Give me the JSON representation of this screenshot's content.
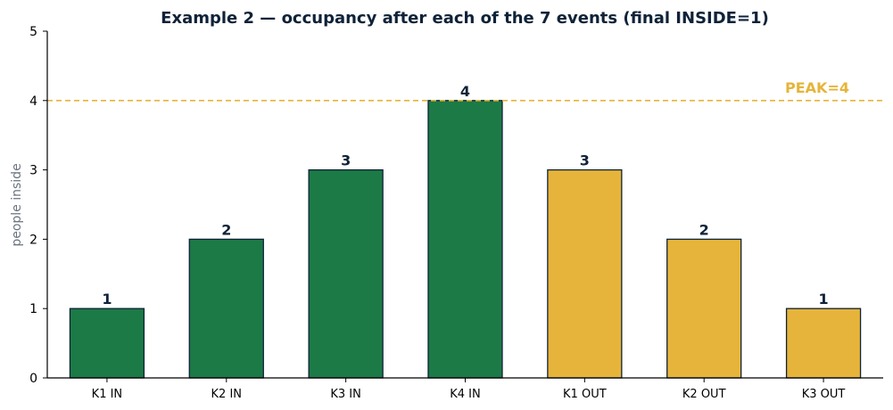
{
  "chart_data": {
    "type": "bar",
    "title": "Example 2 — occupancy after each of the 7 events (final INSIDE=1)",
    "xlabel": "",
    "ylabel": "people inside",
    "categories": [
      "K1 IN",
      "K2 IN",
      "K3 IN",
      "K4 IN",
      "K1 OUT",
      "K2 OUT",
      "K3 OUT"
    ],
    "values": [
      1,
      2,
      3,
      4,
      3,
      2,
      1
    ],
    "data_labels": [
      "1",
      "2",
      "3",
      "4",
      "3",
      "2",
      "1"
    ],
    "bar_kinds": [
      "in",
      "in",
      "in",
      "in",
      "out",
      "out",
      "out"
    ],
    "ylim": [
      0,
      5
    ],
    "yticks": [
      0,
      1,
      2,
      3,
      4,
      5
    ],
    "ytick_labels": [
      "0",
      "1",
      "2",
      "3",
      "4",
      "5"
    ],
    "grid": false,
    "reference_line": {
      "value": 4,
      "label": "PEAK=4",
      "style": "dashed",
      "color": "#e6b43a"
    },
    "colors": {
      "in": "#1c7a46",
      "out": "#e6b43a",
      "bar_edge": "#0f2238",
      "title": "#0f2238",
      "data_label": "#0f2238",
      "axis": "#000000",
      "ylabel": "#6b7280",
      "tick": "#000000"
    }
  }
}
